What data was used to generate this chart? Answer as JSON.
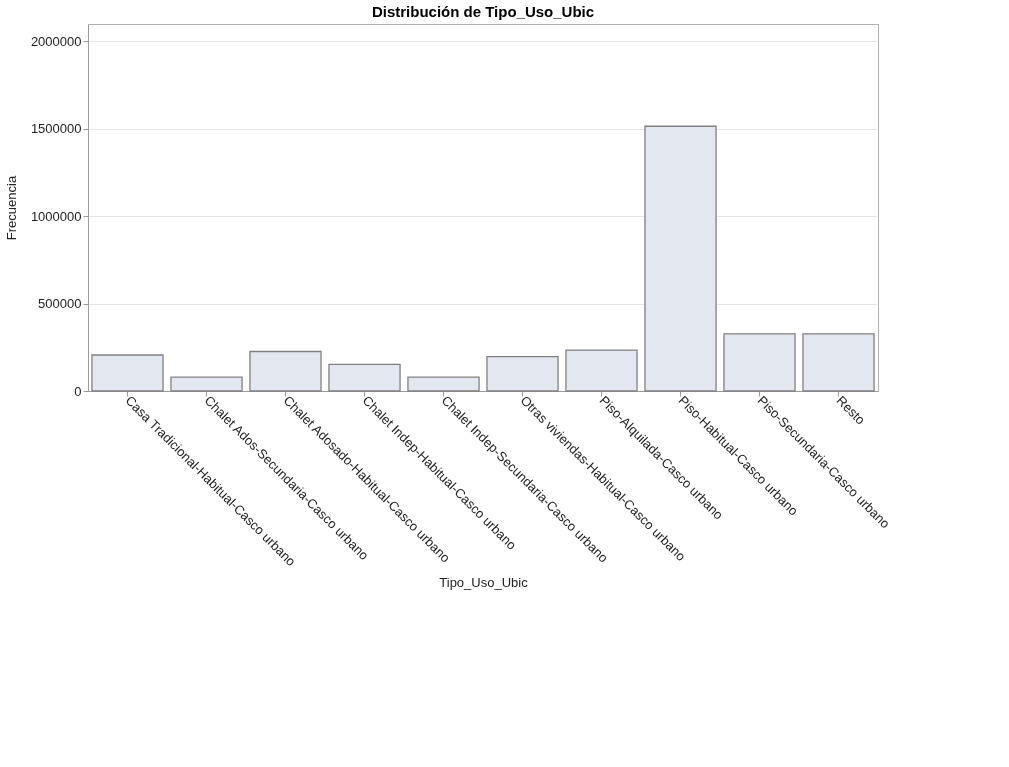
{
  "chart_data": {
    "type": "bar",
    "title": "Distribución de Tipo_Uso_Ubic",
    "xlabel": "Tipo_Uso_Ubic",
    "ylabel": "Frecuencia",
    "categories": [
      "Casa Tradicional-Habitual-Casco urbano",
      "Chalet Ados-Secundaria-Casco urbano",
      "Chalet Adosado-Habitual-Casco urbano",
      "Chalet Indep-Habitual-Casco urbano",
      "Chalet Indep-Secundaria-Casco urbano",
      "Otras viviendas-Habitual-Casco urbano",
      "Piso-Alquilada-Casco urbano",
      "Piso-Habitual-Casco urbano",
      "Piso-Secundaria-Casco urbano",
      "Resto"
    ],
    "values": [
      206000,
      79000,
      226000,
      152000,
      79000,
      197000,
      234000,
      1515000,
      327000,
      327000
    ],
    "color": "#e3e7f0",
    "ylim": [
      0,
      2100000
    ],
    "yticks": [
      0,
      500000,
      1000000,
      1500000,
      2000000
    ],
    "grid": "y"
  }
}
